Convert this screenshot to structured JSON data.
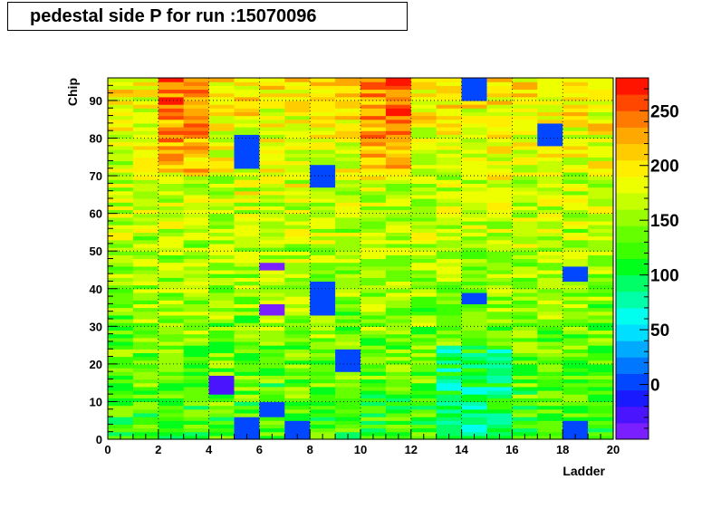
{
  "chart_data": {
    "type": "heatmap",
    "title": "pedestal side P for run :15070096",
    "xlabel": "Ladder",
    "ylabel": "Chip",
    "xlim": [
      0,
      20
    ],
    "ylim": [
      0,
      96
    ],
    "x_bins": 20,
    "y_bins": 96,
    "x_ticks": [
      0,
      2,
      4,
      6,
      8,
      10,
      12,
      14,
      16,
      18,
      20
    ],
    "y_ticks": [
      0,
      10,
      20,
      30,
      40,
      50,
      60,
      70,
      80,
      90
    ],
    "z_range": [
      -50,
      280
    ],
    "palette_ticks": [
      0,
      50,
      100,
      150,
      200,
      250
    ],
    "grid": true,
    "palette_colors": [
      "#7a1fff",
      "#4b14ff",
      "#1a1aff",
      "#0047ff",
      "#0077ff",
      "#00aaff",
      "#00dfff",
      "#00ffee",
      "#00ffa8",
      "#00ff66",
      "#00ff1a",
      "#3cff00",
      "#66ff00",
      "#99ff00",
      "#c6ff00",
      "#eeff00",
      "#ffee00",
      "#ffcc00",
      "#ffa800",
      "#ff7a00",
      "#ff4700",
      "#ff1400"
    ],
    "anomalies": [
      {
        "ladder": 5,
        "chips": [
          0,
          6
        ],
        "value": 0
      },
      {
        "ladder": 5,
        "chips": [
          72,
          81
        ],
        "value": 0
      },
      {
        "ladder": 8,
        "chips": [
          67,
          73
        ],
        "value": 0
      },
      {
        "ladder": 8,
        "chips": [
          33,
          42
        ],
        "value": 0
      },
      {
        "ladder": 7,
        "chips": [
          0,
          5
        ],
        "value": 0
      },
      {
        "ladder": 9,
        "chips": [
          18,
          24
        ],
        "value": 0
      },
      {
        "ladder": 17,
        "chips": [
          78,
          84
        ],
        "value": 0
      },
      {
        "ladder": 14,
        "chips": [
          90,
          96
        ],
        "value": 0
      },
      {
        "ladder": 18,
        "chips": [
          0,
          5
        ],
        "value": 0
      },
      {
        "ladder": 18,
        "chips": [
          42,
          46
        ],
        "value": 0
      },
      {
        "ladder": 4,
        "chips": [
          12,
          17
        ],
        "value": -30
      },
      {
        "ladder": 6,
        "chips": [
          33,
          36
        ],
        "value": -40
      },
      {
        "ladder": 6,
        "chips": [
          45,
          47
        ],
        "value": -40
      },
      {
        "ladder": 14,
        "chips": [
          36,
          39
        ],
        "value": 0
      },
      {
        "ladder": 6,
        "chips": [
          6,
          10
        ],
        "value": 0
      }
    ]
  }
}
